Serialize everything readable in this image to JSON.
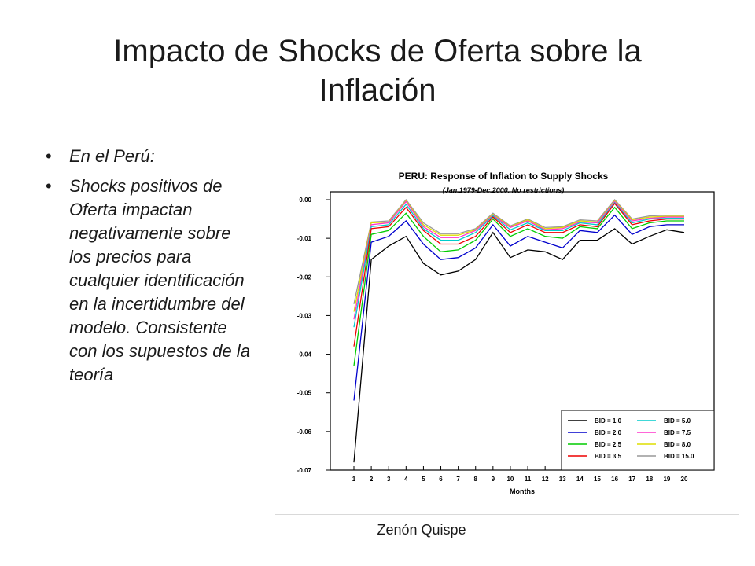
{
  "slide": {
    "title": "Impacto de Shocks de Oferta sobre la Inflación",
    "bullets": [
      "En el Perú:",
      "Shocks positivos de Oferta impactan negativamente sobre los precios para cualquier identificación en la incertidumbre del modelo. Consistente con los supuestos de la teoría"
    ],
    "footer": "Zenón Quispe"
  },
  "chart_data": {
    "type": "line",
    "title": "PERU: Response of Inflation to Supply Shocks",
    "subtitle": "(Jan.1979-Dec.2000. No restrictions)",
    "xlabel": "Months",
    "ylabel": "",
    "x": [
      1,
      2,
      3,
      4,
      5,
      6,
      7,
      8,
      9,
      10,
      11,
      12,
      13,
      14,
      15,
      16,
      17,
      18,
      19,
      20
    ],
    "ylim": [
      -0.07,
      0.0
    ],
    "yticks": [
      "0.00",
      "-0.01",
      "-0.02",
      "-0.03",
      "-0.04",
      "-0.05",
      "-0.06",
      "-0.07"
    ],
    "grid": false,
    "legend": "bottom-right",
    "series": [
      {
        "name": "BID = 1.0",
        "color": "#000000",
        "values": [
          -0.068,
          -0.0155,
          -0.012,
          -0.0095,
          -0.0165,
          -0.0195,
          -0.0185,
          -0.0155,
          -0.0085,
          -0.015,
          -0.013,
          -0.0135,
          -0.0155,
          -0.0105,
          -0.0105,
          -0.0075,
          -0.0115,
          -0.0095,
          -0.0078,
          -0.0085
        ]
      },
      {
        "name": "BID = 2.0",
        "color": "#0000cc",
        "values": [
          -0.052,
          -0.011,
          -0.0095,
          -0.0055,
          -0.0115,
          -0.0155,
          -0.015,
          -0.0125,
          -0.0065,
          -0.012,
          -0.0095,
          -0.011,
          -0.0125,
          -0.008,
          -0.0085,
          -0.004,
          -0.009,
          -0.007,
          -0.0065,
          -0.0065
        ]
      },
      {
        "name": "BID = 2.5",
        "color": "#00cc00",
        "values": [
          -0.043,
          -0.009,
          -0.008,
          -0.0035,
          -0.0095,
          -0.0135,
          -0.013,
          -0.0105,
          -0.005,
          -0.0095,
          -0.0075,
          -0.0095,
          -0.01,
          -0.007,
          -0.0075,
          -0.002,
          -0.0075,
          -0.006,
          -0.0055,
          -0.0055
        ]
      },
      {
        "name": "BID = 3.5",
        "color": "#ee0000",
        "values": [
          -0.038,
          -0.0075,
          -0.007,
          -0.002,
          -0.008,
          -0.0115,
          -0.0115,
          -0.0095,
          -0.0045,
          -0.0085,
          -0.0065,
          -0.0085,
          -0.0085,
          -0.0065,
          -0.007,
          -0.001,
          -0.0065,
          -0.0055,
          -0.005,
          -0.005
        ]
      },
      {
        "name": "BID = 5.0",
        "color": "#00cccc",
        "values": [
          -0.033,
          -0.007,
          -0.0065,
          -0.0012,
          -0.0075,
          -0.0105,
          -0.0105,
          -0.0085,
          -0.0042,
          -0.0078,
          -0.006,
          -0.008,
          -0.008,
          -0.006,
          -0.0065,
          -0.0008,
          -0.006,
          -0.005,
          -0.0048,
          -0.0048
        ]
      },
      {
        "name": "BID = 7.5",
        "color": "#ff33cc",
        "values": [
          -0.031,
          -0.0065,
          -0.006,
          -0.0005,
          -0.007,
          -0.0098,
          -0.0098,
          -0.008,
          -0.004,
          -0.0072,
          -0.0055,
          -0.0078,
          -0.0075,
          -0.0058,
          -0.006,
          -0.0005,
          -0.0055,
          -0.0048,
          -0.0045,
          -0.0045
        ]
      },
      {
        "name": "BID = 8.0",
        "color": "#dddd00",
        "values": [
          -0.029,
          -0.006,
          -0.0058,
          -0.0003,
          -0.0065,
          -0.0092,
          -0.0092,
          -0.0078,
          -0.0038,
          -0.007,
          -0.0052,
          -0.0075,
          -0.0072,
          -0.0055,
          -0.0058,
          -0.0003,
          -0.0052,
          -0.0045,
          -0.0043,
          -0.0043
        ]
      },
      {
        "name": "BID = 15.0",
        "color": "#999999",
        "values": [
          -0.027,
          -0.0058,
          -0.0055,
          0.0,
          -0.006,
          -0.0088,
          -0.0088,
          -0.0075,
          -0.0035,
          -0.0068,
          -0.005,
          -0.0072,
          -0.007,
          -0.0052,
          -0.0055,
          0.0,
          -0.005,
          -0.0042,
          -0.004,
          -0.004
        ]
      }
    ]
  }
}
